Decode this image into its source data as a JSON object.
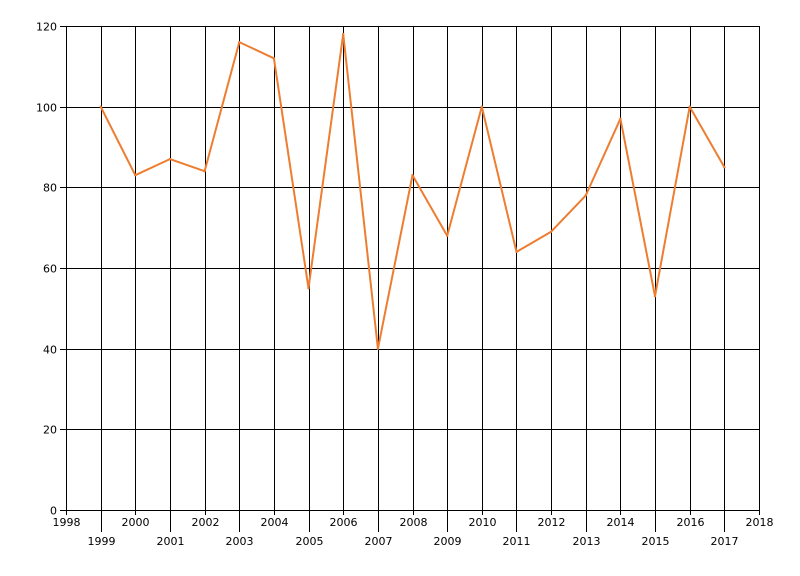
{
  "chart_data": {
    "type": "line",
    "title": "",
    "xlabel": "",
    "ylabel": "",
    "xlim": [
      1998,
      2018
    ],
    "ylim": [
      0,
      120
    ],
    "xticks": [
      1998,
      1999,
      2000,
      2001,
      2002,
      2003,
      2004,
      2005,
      2006,
      2007,
      2008,
      2009,
      2010,
      2011,
      2012,
      2013,
      2014,
      2015,
      2016,
      2017,
      2018
    ],
    "yticks": [
      0,
      20,
      40,
      60,
      80,
      100,
      120
    ],
    "grid": true,
    "legend": "none",
    "series": [
      {
        "color": "#ED7D31",
        "x": [
          1999,
          2000,
          2001,
          2002,
          2003,
          2004,
          2005,
          2006,
          2007,
          2008,
          2009,
          2010,
          2011,
          2012,
          2013,
          2014,
          2015,
          2016,
          2017
        ],
        "y": [
          100,
          83,
          87,
          84,
          116,
          112,
          55,
          118,
          40,
          83,
          68,
          100,
          64,
          69,
          78,
          97,
          53,
          100,
          85
        ]
      }
    ]
  }
}
